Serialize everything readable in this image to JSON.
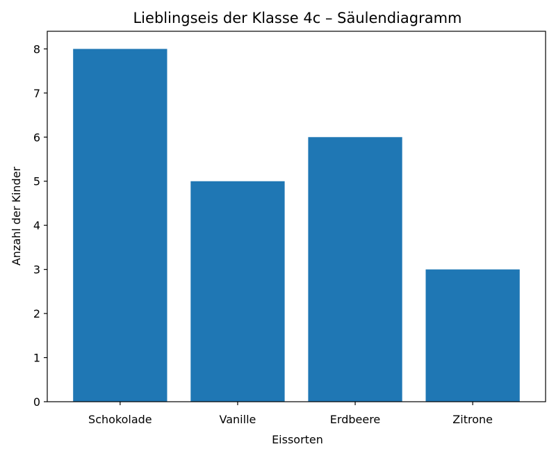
{
  "chart_data": {
    "type": "bar",
    "title": "Lieblingseis der Klasse 4c – Säulendiagramm",
    "xlabel": "Eissorten",
    "ylabel": "Anzahl der Kinder",
    "categories": [
      "Schokolade",
      "Vanille",
      "Erdbeere",
      "Zitrone"
    ],
    "values": [
      8,
      5,
      6,
      3
    ],
    "ylim": [
      0,
      8.4
    ],
    "yticks": [
      0,
      1,
      2,
      3,
      4,
      5,
      6,
      7,
      8
    ],
    "bar_color": "#1f77b4",
    "grid": false,
    "legend": "none"
  }
}
